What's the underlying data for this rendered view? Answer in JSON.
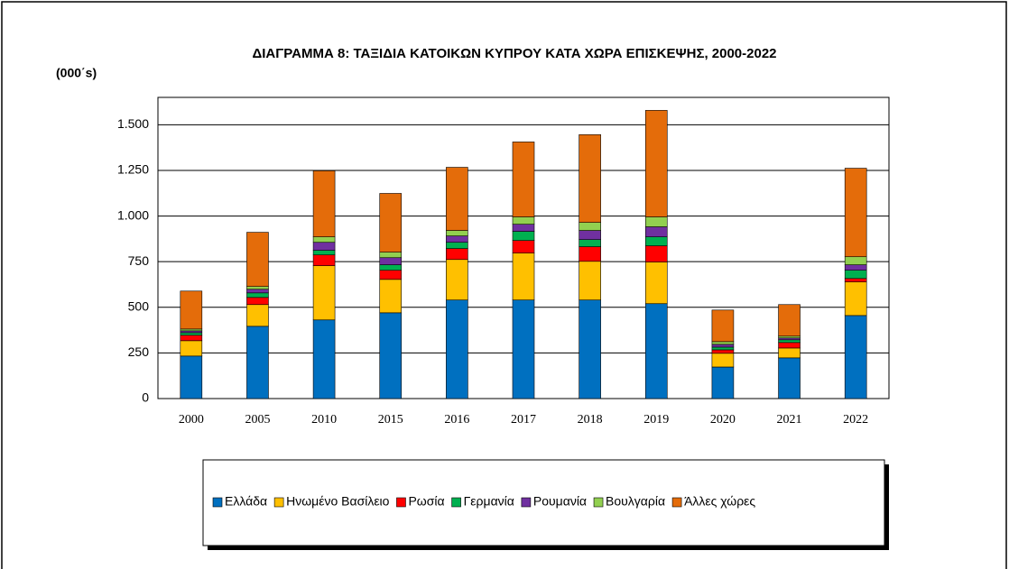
{
  "chart_data": {
    "type": "stacked_bar",
    "title": "ΔΙΑΓΡΑΜΜΑ 8:  ΤΑΞΙΔΙΑ ΚΑΤΟΙΚΩΝ ΚΥΠΡΟΥ ΚΑΤΑ ΧΩΡΑ ΕΠΙΣΚΕΨΗΣ, 2000-2022",
    "y_label": "(000΄s)",
    "categories": [
      "2000",
      "2005",
      "2010",
      "2015",
      "2016",
      "2017",
      "2018",
      "2019",
      "2020",
      "2021",
      "2022"
    ],
    "series": [
      {
        "name": "Ελλάδα",
        "color": "#0070c0",
        "values": [
          233,
          396,
          431,
          470,
          540,
          540,
          540,
          520,
          173,
          223,
          455
        ]
      },
      {
        "name": "Ηνωμένο Βασίλειο",
        "color": "#ffc000",
        "values": [
          84,
          119,
          297,
          183,
          222,
          257,
          212,
          228,
          75,
          54,
          184
        ]
      },
      {
        "name": "Ρωσία",
        "color": "#ff0000",
        "values": [
          30,
          39,
          59,
          50,
          60,
          69,
          80,
          89,
          19,
          30,
          19
        ]
      },
      {
        "name": "Γερμανία",
        "color": "#00b050",
        "values": [
          14,
          25,
          25,
          30,
          34,
          50,
          39,
          49,
          15,
          15,
          45
        ]
      },
      {
        "name": "Ρουμανία",
        "color": "#7030a0",
        "values": [
          10,
          20,
          44,
          39,
          35,
          39,
          50,
          55,
          15,
          10,
          30
        ]
      },
      {
        "name": "Βουλγαρία",
        "color": "#92d050",
        "values": [
          10,
          15,
          30,
          30,
          30,
          40,
          44,
          54,
          15,
          10,
          44
        ]
      },
      {
        "name": "Άλλες χώρες",
        "color": "#e46c0a",
        "values": [
          208,
          297,
          362,
          322,
          346,
          411,
          481,
          584,
          173,
          173,
          485
        ]
      }
    ],
    "ylim": [
      0,
      1650
    ],
    "yticks": [
      0,
      250,
      500,
      750,
      {
        "value": 1000,
        "label": "1.000"
      },
      {
        "value": 1250,
        "label": "1.250"
      },
      {
        "value": 1500,
        "label": "1.500"
      }
    ],
    "grid": true,
    "legend": "bottom"
  }
}
